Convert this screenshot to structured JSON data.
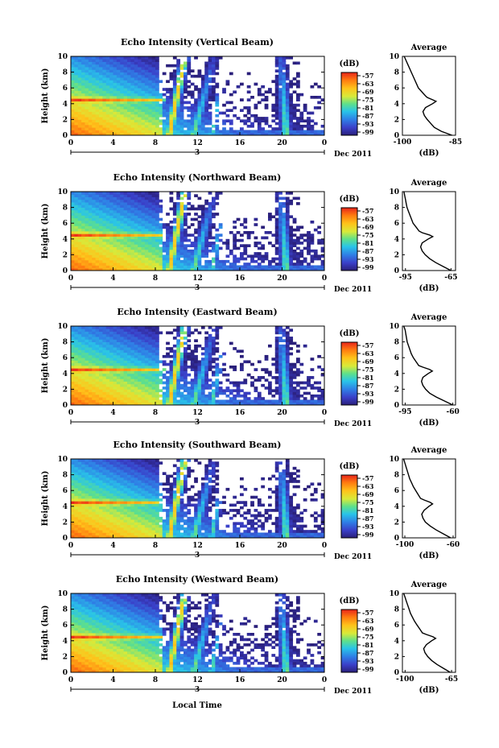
{
  "figure": {
    "xlabel": "Local Time",
    "date_label": "Dec 2011",
    "day_label": "3"
  },
  "chart_data": [
    {
      "type": "heatmap",
      "title": "Echo Intensity (Vertical Beam)",
      "ylabel": "Height (km)",
      "x_ticks": [
        "0",
        "4",
        "8",
        "12",
        "16",
        "20",
        "0"
      ],
      "y_ticks": [
        "0",
        "2",
        "4",
        "6",
        "8",
        "10"
      ],
      "xlim": [
        0,
        24
      ],
      "ylim": [
        0,
        10
      ],
      "colorbar": {
        "unit": "(dB)",
        "ticks": [
          "-57",
          "-63",
          "-69",
          "-75",
          "-81",
          "-87",
          "-93",
          "-99"
        ]
      },
      "average": {
        "title": "Average",
        "xlabel": "(dB)",
        "x_ticks": [
          "-100",
          "-85"
        ],
        "xlim": [
          -100,
          -85
        ],
        "height": [
          0,
          0.5,
          1,
          1.5,
          2,
          2.5,
          3,
          3.5,
          4,
          4.3,
          4.5,
          4.8,
          5,
          5.5,
          6,
          6.5,
          7,
          7.5,
          8,
          8.5,
          9,
          9.5,
          10
        ],
        "value": [
          -86,
          -89,
          -91,
          -92,
          -93,
          -93.8,
          -94.2,
          -93.5,
          -91.5,
          -90.5,
          -91.5,
          -93,
          -93.5,
          -94.5,
          -95.5,
          -96,
          -96.5,
          -97,
          -97.5,
          -98,
          -98.5,
          -99,
          -99.5
        ]
      }
    },
    {
      "type": "heatmap",
      "title": "Echo Intensity (Northward Beam)",
      "ylabel": "Height (km)",
      "x_ticks": [
        "0",
        "4",
        "8",
        "12",
        "16",
        "20",
        "0"
      ],
      "y_ticks": [
        "0",
        "2",
        "4",
        "6",
        "8",
        "10"
      ],
      "xlim": [
        0,
        24
      ],
      "ylim": [
        0,
        10
      ],
      "colorbar": {
        "unit": "(dB)",
        "ticks": [
          "-57",
          "-63",
          "-69",
          "-75",
          "-81",
          "-87",
          "-93",
          "-99"
        ]
      },
      "average": {
        "title": "Average",
        "xlabel": "(dB)",
        "x_ticks": [
          "-95",
          "-65"
        ],
        "xlim": [
          -97,
          -62
        ],
        "height": [
          0,
          0.5,
          1,
          1.5,
          2,
          2.5,
          3,
          3.5,
          4,
          4.3,
          4.5,
          4.8,
          5,
          5.5,
          6,
          6.5,
          7,
          7.5,
          8,
          8.5,
          9,
          9.5,
          10
        ],
        "value": [
          -65,
          -70,
          -75,
          -79,
          -82,
          -84,
          -85,
          -84,
          -80,
          -77,
          -79,
          -84,
          -86,
          -88,
          -90,
          -91,
          -92,
          -93,
          -94,
          -94.5,
          -95,
          -95.5,
          -96
        ]
      }
    },
    {
      "type": "heatmap",
      "title": "Echo Intensity (Eastward Beam)",
      "ylabel": "Height (km)",
      "x_ticks": [
        "0",
        "4",
        "8",
        "12",
        "16",
        "20",
        "0"
      ],
      "y_ticks": [
        "0",
        "2",
        "4",
        "6",
        "8",
        "10"
      ],
      "xlim": [
        0,
        24
      ],
      "ylim": [
        0,
        10
      ],
      "colorbar": {
        "unit": "(dB)",
        "ticks": [
          "-57",
          "-63",
          "-69",
          "-75",
          "-81",
          "-87",
          "-93",
          "-99"
        ]
      },
      "average": {
        "title": "Average",
        "xlabel": "(dB)",
        "x_ticks": [
          "-95",
          "-60"
        ],
        "xlim": [
          -97,
          -58
        ],
        "height": [
          0,
          0.5,
          1,
          1.5,
          2,
          2.5,
          3,
          3.5,
          4,
          4.3,
          4.5,
          4.8,
          5,
          5.5,
          6,
          6.5,
          7,
          7.5,
          8,
          8.5,
          9,
          9.5,
          10
        ],
        "value": [
          -60,
          -66,
          -72,
          -77,
          -80,
          -82,
          -83,
          -82,
          -78,
          -75,
          -77,
          -82,
          -85,
          -87,
          -89,
          -90.5,
          -91.5,
          -92.5,
          -93.5,
          -94,
          -94.5,
          -95,
          -96
        ]
      }
    },
    {
      "type": "heatmap",
      "title": "Echo Intensity (Southward Beam)",
      "ylabel": "Height (km)",
      "x_ticks": [
        "0",
        "4",
        "8",
        "12",
        "16",
        "20",
        "0"
      ],
      "y_ticks": [
        "0",
        "2",
        "4",
        "6",
        "8",
        "10"
      ],
      "xlim": [
        0,
        24
      ],
      "ylim": [
        0,
        10
      ],
      "colorbar": {
        "unit": "(dB)",
        "ticks": [
          "-57",
          "-63",
          "-69",
          "-75",
          "-81",
          "-87",
          "-93",
          "-99"
        ]
      },
      "average": {
        "title": "Average",
        "xlabel": "(dB)",
        "x_ticks": [
          "-100",
          "-60"
        ],
        "xlim": [
          -102,
          -58
        ],
        "height": [
          0,
          0.5,
          1,
          1.5,
          2,
          2.5,
          3,
          3.5,
          4,
          4.3,
          4.5,
          4.8,
          5,
          5.5,
          6,
          6.5,
          7,
          7.5,
          8,
          8.5,
          9,
          9.5,
          10
        ],
        "value": [
          -62,
          -68,
          -74,
          -79,
          -83,
          -85,
          -86,
          -84,
          -80,
          -77,
          -79,
          -84,
          -87,
          -89,
          -91,
          -93,
          -94.5,
          -96,
          -97,
          -98,
          -99,
          -100,
          -101
        ]
      }
    },
    {
      "type": "heatmap",
      "title": "Echo Intensity (Westward Beam)",
      "ylabel": "Height (km)",
      "x_ticks": [
        "0",
        "4",
        "8",
        "12",
        "16",
        "20",
        "0"
      ],
      "y_ticks": [
        "0",
        "2",
        "4",
        "6",
        "8",
        "10"
      ],
      "xlim": [
        0,
        24
      ],
      "ylim": [
        0,
        10
      ],
      "colorbar": {
        "unit": "(dB)",
        "ticks": [
          "-57",
          "-63",
          "-69",
          "-75",
          "-81",
          "-87",
          "-93",
          "-99"
        ]
      },
      "average": {
        "title": "Average",
        "xlabel": "(dB)",
        "x_ticks": [
          "-100",
          "-65"
        ],
        "xlim": [
          -102,
          -62
        ],
        "height": [
          0,
          0.5,
          1,
          1.5,
          2,
          2.5,
          3,
          3.5,
          4,
          4.3,
          4.5,
          4.8,
          5,
          5.5,
          6,
          6.5,
          7,
          7.5,
          8,
          8.5,
          9,
          9.5,
          10
        ],
        "value": [
          -66,
          -71,
          -76,
          -80,
          -83,
          -85,
          -86,
          -84,
          -80,
          -77,
          -79,
          -84,
          -87,
          -89,
          -91,
          -93,
          -94.5,
          -96,
          -97,
          -98,
          -99,
          -100,
          -101
        ]
      }
    }
  ]
}
